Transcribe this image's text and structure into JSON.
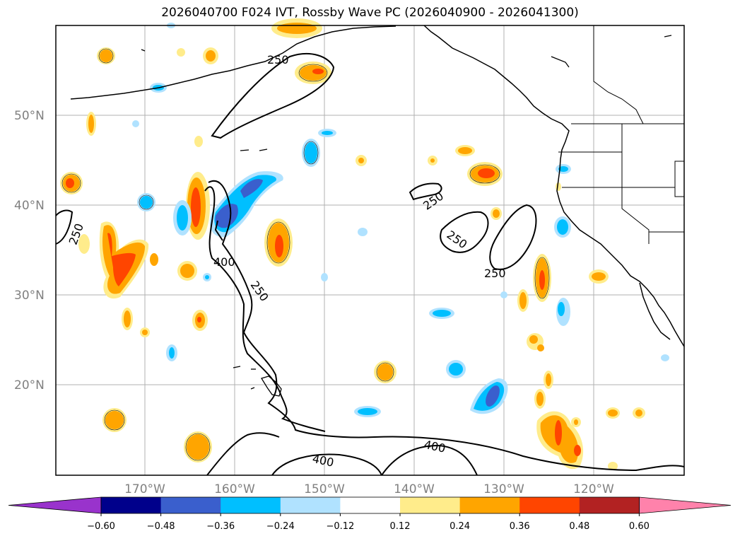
{
  "title": "2026040700 F024 IVT, Rossby Wave PC (2026040900 - 2026041300)",
  "lat_labels": [
    "50°N",
    "40°N",
    "30°N",
    "20°N"
  ],
  "lon_labels": [
    "170°W",
    "160°W",
    "150°W",
    "140°W",
    "130°W",
    "120°W"
  ],
  "contour_labels": [
    "250",
    "250",
    "250",
    "250",
    "250",
    "250",
    "400",
    "400",
    "400"
  ],
  "colorbar": {
    "ticks": [
      "−0.60",
      "−0.48",
      "−0.36",
      "−0.24",
      "−0.12",
      "0.12",
      "0.24",
      "0.36",
      "0.48",
      "0.60"
    ],
    "colors": [
      "#9933cc",
      "#00008b",
      "#3a5fcd",
      "#00bfff",
      "#b0e2ff",
      "#ffffff",
      "#ffec8b",
      "#ffa500",
      "#ff4500",
      "#b22222",
      "#ff82ab"
    ]
  },
  "colors": {
    "frame": "#000000",
    "grid": "#b0b0b0",
    "coast": "#000000"
  }
}
